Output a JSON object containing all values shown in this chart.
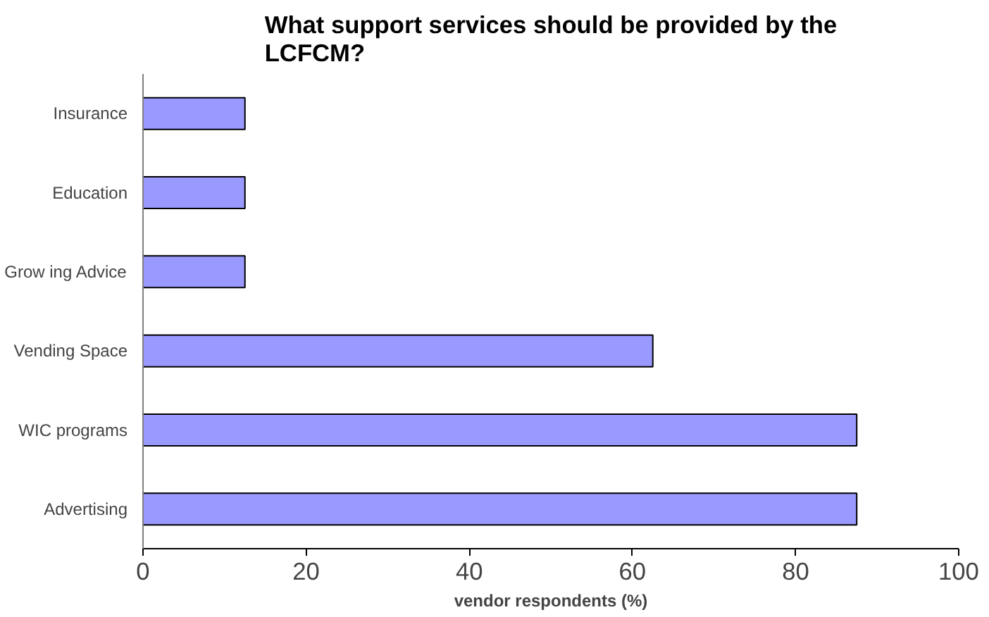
{
  "chart_data": {
    "type": "bar",
    "orientation": "horizontal",
    "title": "What support services should be provided by the LCFCM?",
    "xlabel": "vendor respondents (%)",
    "categories": [
      "Insurance",
      "Education",
      "Grow ing Advice",
      "Vending Space",
      "WIC programs",
      "Advertising"
    ],
    "values": [
      12.5,
      12.5,
      12.5,
      62.5,
      87.5,
      87.5
    ],
    "color": "#9999ff",
    "xlim": [
      0,
      100
    ],
    "xticks": [
      0,
      20,
      40,
      60,
      80,
      100
    ],
    "grid": false
  }
}
